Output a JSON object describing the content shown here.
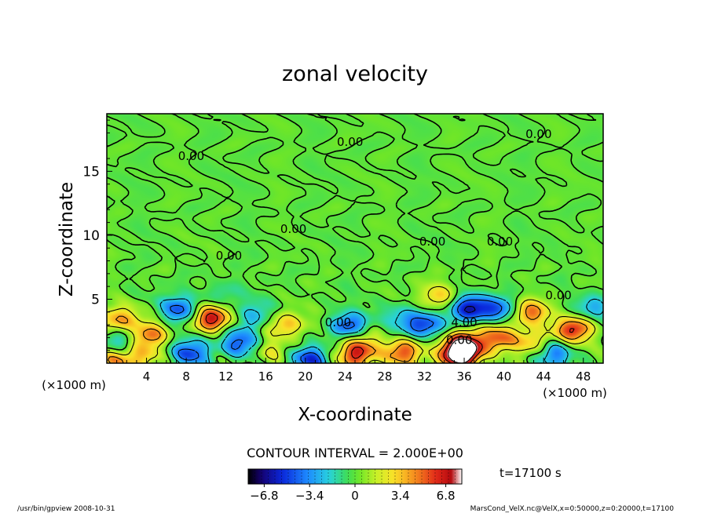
{
  "chart_data": {
    "type": "heatmap",
    "title": "zonal velocity",
    "xlabel": "X-coordinate",
    "ylabel": "Z-coordinate",
    "x_unit": "(×1000 m)",
    "z_unit": "(×1000 m)",
    "xlim": [
      0,
      50
    ],
    "ylim": [
      0,
      19.5
    ],
    "x_ticks": [
      "4",
      "8",
      "12",
      "16",
      "20",
      "24",
      "28",
      "32",
      "36",
      "40",
      "44",
      "48"
    ],
    "x_tick_values": [
      4,
      8,
      12,
      16,
      20,
      24,
      28,
      32,
      36,
      40,
      44,
      48
    ],
    "y_ticks": [
      "5",
      "10",
      "15"
    ],
    "y_tick_values": [
      5,
      10,
      15
    ],
    "contour_interval_text": "CONTOUR INTERVAL = 2.000E+00",
    "contour_labels": [
      {
        "text": "0.00",
        "x": 8.5,
        "z": 16.2
      },
      {
        "text": "0.00",
        "x": 24.5,
        "z": 17.3
      },
      {
        "text": "0.00",
        "x": 43.5,
        "z": 17.9
      },
      {
        "text": "0.00",
        "x": 18.8,
        "z": 10.5
      },
      {
        "text": "0.00",
        "x": 12.3,
        "z": 8.4
      },
      {
        "text": "0.00",
        "x": 32.8,
        "z": 9.5
      },
      {
        "text": "0.00",
        "x": 39.6,
        "z": 9.5
      },
      {
        "text": "0.00",
        "x": 45.5,
        "z": 5.3
      },
      {
        "text": "0.00",
        "x": 23.3,
        "z": 3.2
      },
      {
        "text": "4.00",
        "x": 36.0,
        "z": 3.2
      },
      {
        "text": "0.00",
        "x": 35.5,
        "z": 1.8
      }
    ],
    "colorbar": {
      "min": -8.0,
      "max": 8.0,
      "tick_labels": [
        "−6.8",
        "−3.4",
        "0",
        "3.4",
        "6.8"
      ],
      "tick_values": [
        -6.8,
        -3.4,
        0,
        3.4,
        6.8
      ]
    },
    "time_label": "t=17100 s",
    "footer_left": "/usr/bin/gpview   2008-10-31",
    "footer_right": "MarsCond_VelX.nc@VelX,x=0:50000,z=0:20000,t=17100",
    "features": [
      {
        "x": 35.5,
        "z": 0.6,
        "value": 9.0
      },
      {
        "x": 36.0,
        "z": 1.4,
        "value": 7.0
      },
      {
        "x": 10.5,
        "z": 3.5,
        "value": 6.8
      },
      {
        "x": 47.0,
        "z": 2.6,
        "value": 6.5
      },
      {
        "x": 39.5,
        "z": 2.0,
        "value": 5.5
      },
      {
        "x": 42.8,
        "z": 4.0,
        "value": 5.0
      },
      {
        "x": 4.3,
        "z": 2.2,
        "value": 4.5
      },
      {
        "x": 1.3,
        "z": 3.4,
        "value": 4.0
      },
      {
        "x": 0.8,
        "z": 0.4,
        "value": 4.5
      },
      {
        "x": 25.0,
        "z": 0.6,
        "value": 6.0
      },
      {
        "x": 29.8,
        "z": 0.8,
        "value": 5.5
      },
      {
        "x": 18.0,
        "z": 3.0,
        "value": 3.5
      },
      {
        "x": 26.0,
        "z": 1.6,
        "value": 2.5
      },
      {
        "x": 36.5,
        "z": 4.3,
        "value": -6.0
      },
      {
        "x": 32.0,
        "z": 3.0,
        "value": -5.0
      },
      {
        "x": 39.5,
        "z": 4.2,
        "value": -4.5
      },
      {
        "x": 24.5,
        "z": 2.9,
        "value": -4.5
      },
      {
        "x": 7.3,
        "z": 4.2,
        "value": -4.5
      },
      {
        "x": 8.5,
        "z": 0.8,
        "value": -5.0
      },
      {
        "x": 13.5,
        "z": 1.6,
        "value": -5.0
      },
      {
        "x": 20.5,
        "z": 0.3,
        "value": -5.5
      },
      {
        "x": 1.2,
        "z": 1.4,
        "value": -3.5
      },
      {
        "x": 45.0,
        "z": 0.7,
        "value": -4.0
      },
      {
        "x": 49.0,
        "z": 4.3,
        "value": -3.0
      },
      {
        "x": 15.0,
        "z": 3.8,
        "value": -2.5
      },
      {
        "x": 3.5,
        "z": 0.5,
        "value": 3.0
      },
      {
        "x": 16.5,
        "z": 1.0,
        "value": 2.5
      },
      {
        "x": 43.0,
        "z": 1.5,
        "value": 3.0
      },
      {
        "x": 29.5,
        "z": 3.5,
        "value": -2.0
      },
      {
        "x": 33.5,
        "z": 5.2,
        "value": 3.5
      },
      {
        "x": 11.5,
        "z": 5.3,
        "value": -1.5
      }
    ]
  }
}
